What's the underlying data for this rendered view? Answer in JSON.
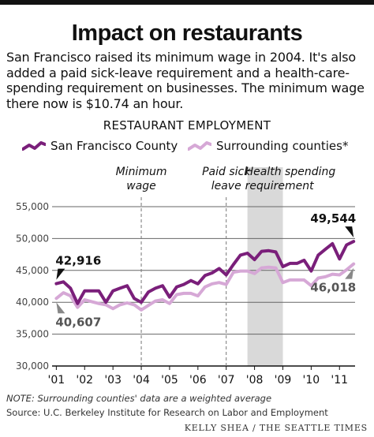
{
  "header": {
    "title": "Impact on restaurants",
    "intro": "San Francisco raised its minimum wage in 2004. It's also added a paid sick-leave requirement and a health-care-spending requirement on businesses. The minimum wage there now is $10.74 an hour."
  },
  "colors": {
    "sf": "#7a1f7a",
    "surrounding": "#d6a8d6",
    "shade": "#d9d9d9",
    "grid": "#666666",
    "text": "#111111"
  },
  "chart_data": {
    "type": "line",
    "title": "RESTAURANT EMPLOYMENT",
    "ylim": [
      30000,
      55000
    ],
    "yticks": [
      "55,000",
      "50,000",
      "45,000",
      "40,000",
      "35,000",
      "30,000"
    ],
    "xticks": [
      "'01",
      "'02",
      "'03",
      "'04",
      "'05",
      "'06",
      "'07",
      "'08",
      "'09",
      "'10",
      "'11"
    ],
    "grid": true,
    "legend_position": "top",
    "series": [
      {
        "name": "San Francisco County",
        "x": [
          2001.0,
          2001.25,
          2001.5,
          2001.75,
          2002.0,
          2002.25,
          2002.5,
          2002.75,
          2003.0,
          2003.25,
          2003.5,
          2003.75,
          2004.0,
          2004.25,
          2004.5,
          2004.75,
          2005.0,
          2005.25,
          2005.5,
          2005.75,
          2006.0,
          2006.25,
          2006.5,
          2006.75,
          2007.0,
          2007.25,
          2007.5,
          2007.75,
          2008.0,
          2008.25,
          2008.5,
          2008.75,
          2009.0,
          2009.25,
          2009.5,
          2009.75,
          2010.0,
          2010.25,
          2010.5,
          2010.75,
          2011.0,
          2011.25,
          2011.5
        ],
        "values": [
          42916,
          43200,
          42200,
          39800,
          41800,
          41800,
          41800,
          40000,
          41800,
          42200,
          42600,
          40600,
          40000,
          41600,
          42200,
          42600,
          40800,
          42400,
          42800,
          43400,
          42900,
          44200,
          44600,
          45300,
          44300,
          45900,
          47400,
          47700,
          46700,
          48000,
          48100,
          47900,
          45600,
          46100,
          46100,
          46600,
          44900,
          47400,
          48300,
          49200,
          46800,
          49000,
          49544
        ]
      },
      {
        "name": "Surrounding counties*",
        "x": [
          2001.0,
          2001.25,
          2001.5,
          2001.75,
          2002.0,
          2002.25,
          2002.5,
          2002.75,
          2003.0,
          2003.25,
          2003.5,
          2003.75,
          2004.0,
          2004.25,
          2004.5,
          2004.75,
          2005.0,
          2005.25,
          2005.5,
          2005.75,
          2006.0,
          2006.25,
          2006.5,
          2006.75,
          2007.0,
          2007.25,
          2007.5,
          2007.75,
          2008.0,
          2008.25,
          2008.5,
          2008.75,
          2009.0,
          2009.25,
          2009.5,
          2009.75,
          2010.0,
          2010.25,
          2010.5,
          2010.75,
          2011.0,
          2011.25,
          2011.5
        ],
        "values": [
          40607,
          41500,
          41000,
          39200,
          40400,
          40100,
          39800,
          39600,
          39000,
          39600,
          39900,
          39600,
          38800,
          39500,
          40200,
          40400,
          39800,
          41200,
          41400,
          41400,
          41000,
          42400,
          42900,
          43100,
          42800,
          44700,
          44900,
          44900,
          44500,
          45400,
          45500,
          45400,
          43100,
          43500,
          43500,
          43500,
          42600,
          43800,
          44000,
          44400,
          44300,
          45100,
          46018
        ]
      }
    ],
    "events": [
      {
        "x": 2004.0,
        "label_lines": [
          "Minimum",
          "wage"
        ]
      },
      {
        "x": 2007.0,
        "label_lines": [
          "Paid sick",
          "leave"
        ]
      }
    ],
    "shaded": {
      "x0": 2007.75,
      "x1": 2009.0,
      "label_lines": [
        "Health spending",
        "requirement"
      ]
    },
    "annotations": [
      {
        "series": 0,
        "point": "first",
        "text": "42,916",
        "side": "above"
      },
      {
        "series": 1,
        "point": "first",
        "text": "40,607",
        "side": "below"
      },
      {
        "series": 0,
        "point": "last",
        "text": "49,544",
        "side": "above"
      },
      {
        "series": 1,
        "point": "last",
        "text": "46,018",
        "side": "below"
      }
    ]
  },
  "footer": {
    "note": "NOTE: Surrounding counties' data are a weighted average",
    "source": "Source: U.C. Berkeley Institute for Research on Labor and Employment",
    "credit": "KELLY SHEA / THE SEATTLE TIMES"
  }
}
